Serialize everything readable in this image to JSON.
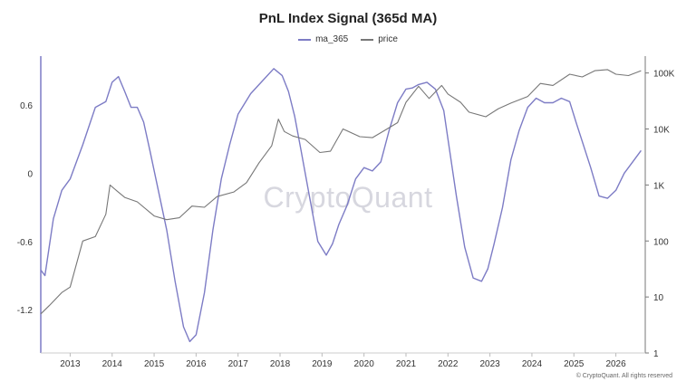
{
  "chart_data": {
    "type": "line",
    "title": "PnL Index Signal (365d MA)",
    "watermark": "CryptoQuant",
    "copyright": "© CryptoQuant. All rights reserved",
    "legend_position": "top-center",
    "grid": false,
    "xlim": [
      2012.3,
      2026.7
    ],
    "xticks": [
      "2013",
      "2014",
      "2015",
      "2016",
      "2017",
      "2018",
      "2019",
      "2020",
      "2021",
      "2022",
      "2023",
      "2024",
      "2025",
      "2026"
    ],
    "y_left": {
      "ticks": [
        "0.6",
        "0",
        "-0.6",
        "-1.2"
      ],
      "tick_values": [
        0.6,
        0,
        -0.6,
        -1.2
      ],
      "lim": [
        -1.58,
        1.03
      ]
    },
    "y_right": {
      "scale": "log",
      "ticks": [
        "100K",
        "10K",
        "1K",
        "100",
        "10",
        "1"
      ],
      "tick_values": [
        100000,
        10000,
        1000,
        100,
        10,
        1
      ],
      "lim": [
        1,
        200000
      ]
    },
    "series": [
      {
        "name": "ma_365",
        "axis": "left",
        "color": "#7d7cc5",
        "x": [
          2012.3,
          2012.4,
          2012.6,
          2012.8,
          2013.0,
          2013.3,
          2013.6,
          2013.85,
          2014.0,
          2014.15,
          2014.3,
          2014.45,
          2014.6,
          2014.75,
          2014.9,
          2015.1,
          2015.3,
          2015.5,
          2015.7,
          2015.85,
          2016.0,
          2016.2,
          2016.4,
          2016.6,
          2016.8,
          2017.0,
          2017.3,
          2017.6,
          2017.85,
          2018.05,
          2018.2,
          2018.35,
          2018.5,
          2018.7,
          2018.9,
          2019.1,
          2019.25,
          2019.4,
          2019.6,
          2019.8,
          2020.0,
          2020.2,
          2020.4,
          2020.6,
          2020.8,
          2021.0,
          2021.15,
          2021.3,
          2021.5,
          2021.7,
          2021.9,
          2022.0,
          2022.2,
          2022.4,
          2022.6,
          2022.8,
          2022.95,
          2023.1,
          2023.3,
          2023.5,
          2023.7,
          2023.9,
          2024.1,
          2024.3,
          2024.5,
          2024.7,
          2024.9,
          2025.05,
          2025.2,
          2025.4,
          2025.6,
          2025.8,
          2026.0,
          2026.2,
          2026.4,
          2026.6
        ],
        "values": [
          -0.85,
          -0.9,
          -0.4,
          -0.15,
          -0.05,
          0.25,
          0.58,
          0.63,
          0.8,
          0.85,
          0.72,
          0.58,
          0.58,
          0.45,
          0.2,
          -0.15,
          -0.5,
          -0.95,
          -1.35,
          -1.48,
          -1.42,
          -1.05,
          -0.5,
          -0.05,
          0.25,
          0.52,
          0.7,
          0.82,
          0.92,
          0.86,
          0.72,
          0.5,
          0.2,
          -0.2,
          -0.6,
          -0.72,
          -0.62,
          -0.45,
          -0.28,
          -0.05,
          0.05,
          0.02,
          0.1,
          0.38,
          0.62,
          0.74,
          0.75,
          0.78,
          0.8,
          0.74,
          0.55,
          0.3,
          -0.2,
          -0.65,
          -0.92,
          -0.95,
          -0.84,
          -0.62,
          -0.3,
          0.12,
          0.38,
          0.58,
          0.66,
          0.62,
          0.62,
          0.66,
          0.63,
          0.45,
          0.28,
          0.05,
          -0.2,
          -0.22,
          -0.15,
          0.0,
          0.1,
          0.2
        ]
      },
      {
        "name": "price",
        "axis": "right",
        "color": "#777777",
        "x": [
          2012.3,
          2012.5,
          2012.8,
          2013.0,
          2013.3,
          2013.6,
          2013.85,
          2013.95,
          2014.1,
          2014.3,
          2014.6,
          2015.0,
          2015.3,
          2015.6,
          2015.9,
          2016.2,
          2016.5,
          2016.9,
          2017.2,
          2017.5,
          2017.8,
          2017.96,
          2018.1,
          2018.3,
          2018.6,
          2018.95,
          2019.2,
          2019.5,
          2019.9,
          2020.2,
          2020.5,
          2020.8,
          2021.0,
          2021.3,
          2021.55,
          2021.85,
          2022.0,
          2022.3,
          2022.5,
          2022.9,
          2023.2,
          2023.5,
          2023.9,
          2024.2,
          2024.5,
          2024.9,
          2025.2,
          2025.5,
          2025.8,
          2026.0,
          2026.3,
          2026.6
        ],
        "values": [
          5,
          7,
          12,
          15,
          100,
          120,
          300,
          1000,
          800,
          600,
          500,
          280,
          240,
          260,
          420,
          400,
          620,
          750,
          1100,
          2500,
          5000,
          15000,
          9000,
          7500,
          6500,
          3800,
          4000,
          10000,
          7300,
          7000,
          9500,
          13000,
          30000,
          58000,
          35000,
          60000,
          42000,
          30000,
          20000,
          16500,
          23000,
          29000,
          38000,
          65000,
          60000,
          95000,
          85000,
          110000,
          115000,
          95000,
          90000,
          110000
        ]
      }
    ]
  }
}
